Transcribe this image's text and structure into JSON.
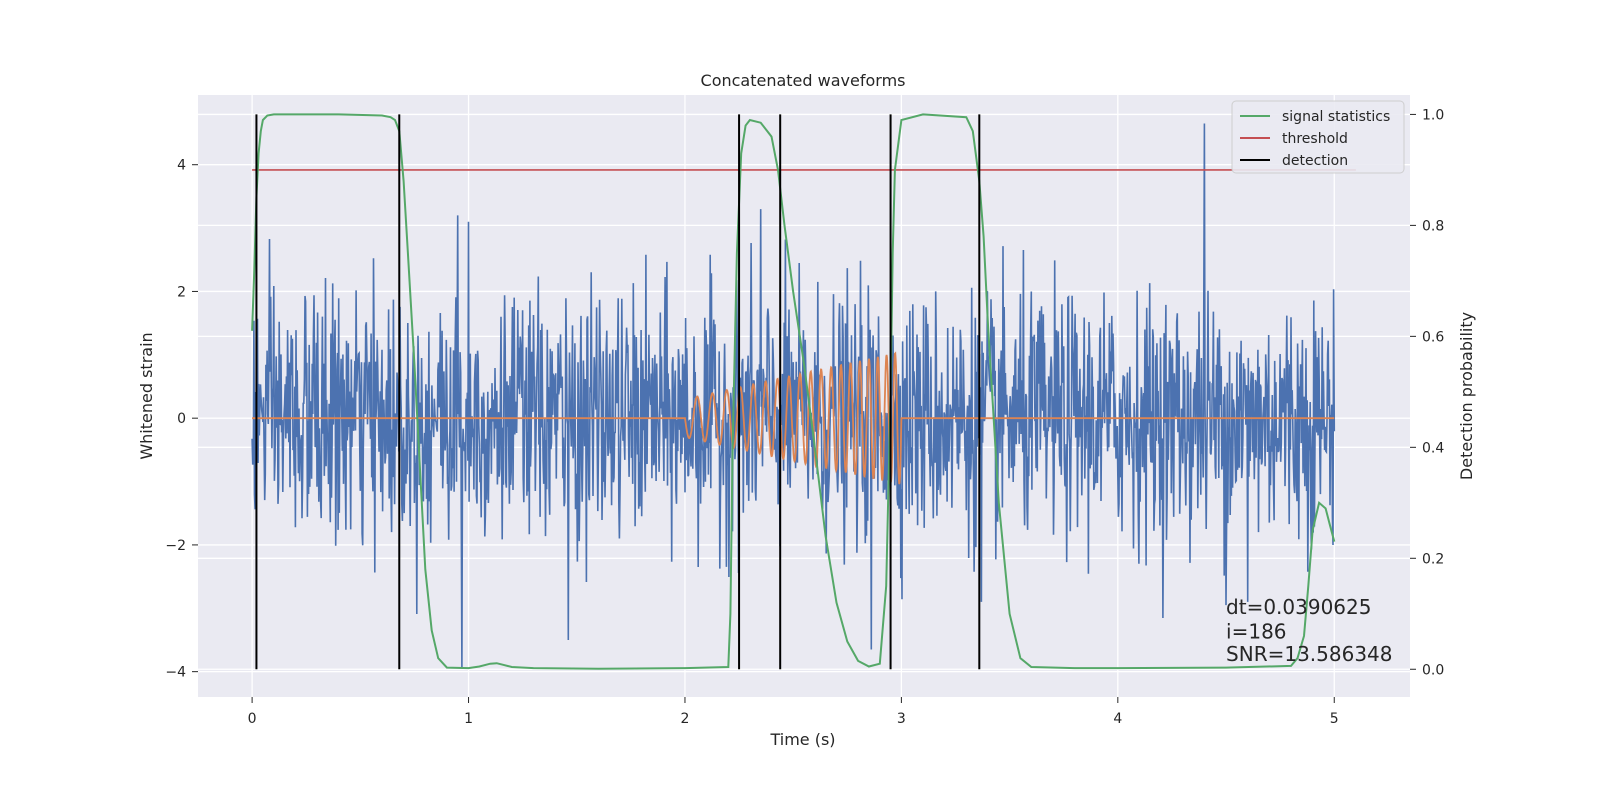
{
  "chart_data": {
    "type": "line",
    "title": "Concatenated waveforms",
    "xlabel": "Time (s)",
    "ylabel_left": "Whitened strain",
    "ylabel_right": "Detection probability",
    "xlim": [
      -0.25,
      5.35
    ],
    "ylim_left": [
      -4.4,
      5.1
    ],
    "ylim_right": [
      -0.05,
      1.035
    ],
    "xticks": [
      0,
      1,
      2,
      3,
      4,
      5
    ],
    "xtick_labels": [
      "0",
      "1",
      "2",
      "3",
      "4",
      "5"
    ],
    "yticks_left": [
      -4,
      -2,
      0,
      2,
      4
    ],
    "ytick_labels_left": [
      "−4",
      "−2",
      "0",
      "2",
      "4"
    ],
    "yticks_right": [
      0.0,
      0.2,
      0.4,
      0.6,
      0.8,
      1.0
    ],
    "ytick_labels_right": [
      "0.0",
      "0.2",
      "0.4",
      "0.6",
      "0.8",
      "1.0"
    ],
    "grid": true,
    "legend_position": "top-right",
    "series": [
      {
        "key": "strain",
        "axis": "left",
        "color": "#4c72b0",
        "noise": {
          "x_start": 0.0,
          "x_end": 5.0,
          "std": 0.95,
          "samples": 1800
        },
        "spikes": [
          [
            0.97,
            -3.95
          ],
          [
            1.46,
            -3.5
          ],
          [
            2.86,
            -3.65
          ],
          [
            3.37,
            -2.9
          ],
          [
            4.4,
            4.65
          ],
          [
            4.5,
            -2.95
          ],
          [
            4.6,
            -2.9
          ],
          [
            1.0,
            3.1
          ],
          [
            0.95,
            3.2
          ],
          [
            2.35,
            3.3
          ]
        ]
      },
      {
        "key": "injection",
        "axis": "left",
        "color": "#dd8452",
        "flat_x": [
          0.0,
          5.0
        ],
        "chirp": {
          "x_start": 2.0,
          "x_end": 3.0,
          "amp_start": 0.3,
          "amp_end": 1.05,
          "freq_start": 13,
          "freq_end": 26
        }
      },
      {
        "key": "signal_statistics",
        "name": "signal statistics",
        "axis": "right",
        "color": "#55a868",
        "x": [
          0.0,
          0.01,
          0.02,
          0.03,
          0.04,
          0.05,
          0.07,
          0.1,
          0.2,
          0.4,
          0.6,
          0.64,
          0.66,
          0.68,
          0.7,
          0.72,
          0.75,
          0.78,
          0.8,
          0.83,
          0.86,
          0.9,
          1.0,
          1.05,
          1.1,
          1.13,
          1.16,
          1.2,
          1.3,
          1.6,
          2.0,
          2.2,
          2.21,
          2.22,
          2.24,
          2.26,
          2.28,
          2.3,
          2.35,
          2.4,
          2.43,
          2.46,
          2.5,
          2.55,
          2.6,
          2.65,
          2.7,
          2.75,
          2.8,
          2.85,
          2.9,
          2.93,
          2.95,
          2.96,
          2.97,
          3.0,
          3.1,
          3.3,
          3.33,
          3.36,
          3.38,
          3.4,
          3.45,
          3.5,
          3.55,
          3.6,
          3.8,
          4.0,
          4.5,
          4.8,
          4.83,
          4.86,
          4.88,
          4.9,
          4.93,
          4.96,
          4.98,
          5.0
        ],
        "y": [
          0.61,
          0.72,
          0.85,
          0.93,
          0.97,
          0.99,
          0.998,
          1.0,
          1.0,
          1.0,
          0.998,
          0.995,
          0.99,
          0.97,
          0.88,
          0.75,
          0.55,
          0.33,
          0.18,
          0.07,
          0.02,
          0.003,
          0.002,
          0.005,
          0.01,
          0.011,
          0.008,
          0.004,
          0.002,
          0.001,
          0.002,
          0.004,
          0.1,
          0.4,
          0.75,
          0.93,
          0.98,
          0.99,
          0.985,
          0.96,
          0.9,
          0.8,
          0.68,
          0.55,
          0.4,
          0.24,
          0.12,
          0.05,
          0.015,
          0.005,
          0.01,
          0.15,
          0.5,
          0.75,
          0.9,
          0.99,
          1.0,
          0.995,
          0.97,
          0.88,
          0.78,
          0.62,
          0.3,
          0.1,
          0.02,
          0.004,
          0.002,
          0.002,
          0.003,
          0.006,
          0.02,
          0.06,
          0.15,
          0.25,
          0.3,
          0.29,
          0.26,
          0.23
        ]
      },
      {
        "key": "threshold",
        "name": "threshold",
        "axis": "right",
        "color": "#c44e52",
        "x": [
          0.0,
          5.1
        ],
        "y": [
          0.9,
          0.9
        ]
      },
      {
        "key": "detection",
        "name": "detection",
        "axis": "right",
        "color": "#000000",
        "vlines_x": [
          0.02,
          0.68,
          2.25,
          2.44,
          2.95,
          3.36
        ],
        "vline_range": [
          0.0,
          1.0
        ]
      }
    ],
    "annotations": [
      {
        "text": "dt=0.0390625",
        "x": 4.5,
        "y": 0.1
      },
      {
        "text": " i=186",
        "x": 4.5,
        "y": 0.055
      },
      {
        "text": "SNR=13.586348",
        "x": 4.5,
        "y": 0.015
      }
    ]
  }
}
